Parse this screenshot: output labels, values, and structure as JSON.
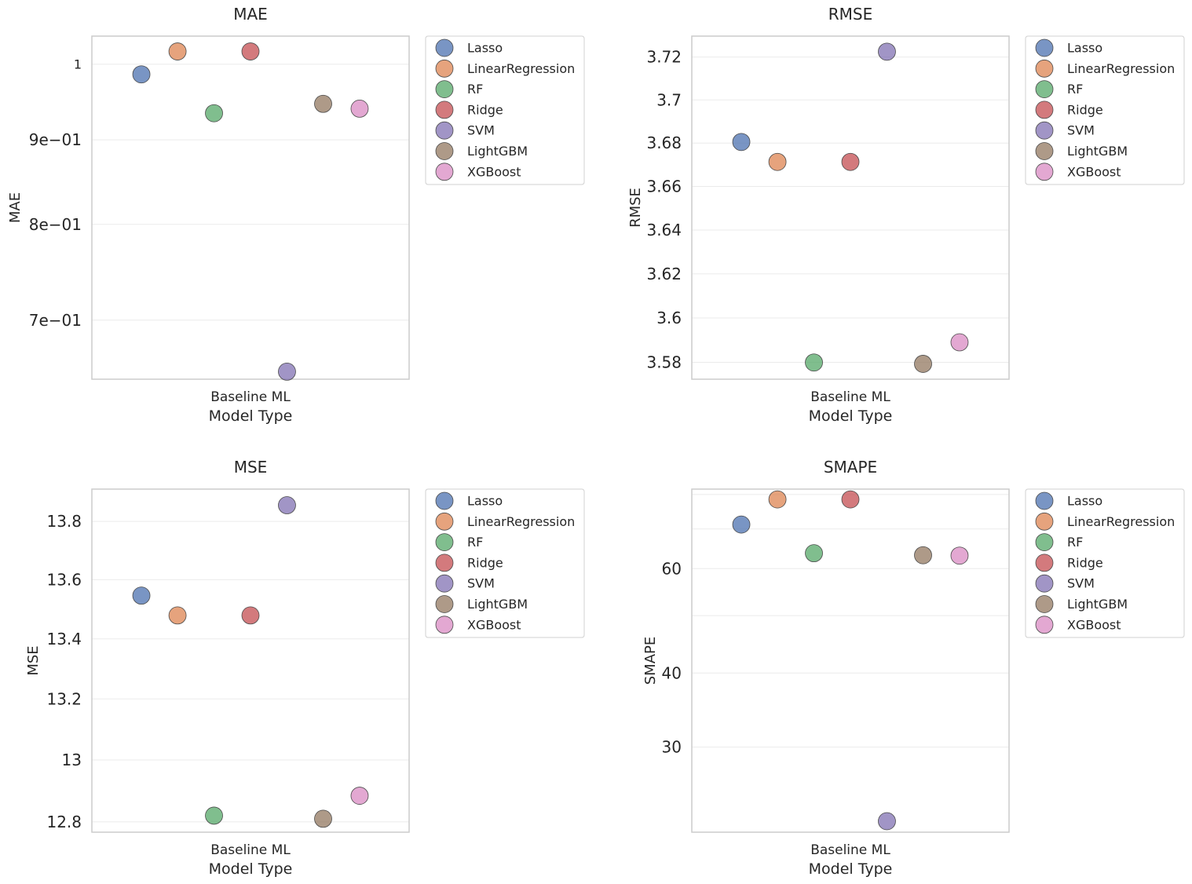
{
  "colors": {
    "Lasso": "#4c72b0",
    "LinearRegression": "#dd8452",
    "RF": "#55a868",
    "Ridge": "#c44e52",
    "SVM": "#8172b3",
    "LightGBM": "#937860",
    "XGBoost": "#da8bc3"
  },
  "chart_data": [
    {
      "type": "scatter",
      "title": "MAE",
      "xlabel": "Model Type",
      "ylabel": "MAE",
      "category": "Baseline ML",
      "yscale": "log",
      "ylim": [
        0.6447,
        1.04
      ],
      "ticks": [
        {
          "value": 1.0,
          "label": "1",
          "small": true
        },
        {
          "value": 0.9,
          "label": "9e−01"
        },
        {
          "value": 0.8,
          "label": "8e−01"
        },
        {
          "value": 0.7,
          "label": "7e−01"
        }
      ],
      "series": [
        {
          "name": "Lasso",
          "value": 0.986
        },
        {
          "name": "LinearRegression",
          "value": 1.018
        },
        {
          "name": "RF",
          "value": 0.934
        },
        {
          "name": "Ridge",
          "value": 1.018
        },
        {
          "name": "SVM",
          "value": 0.6515
        },
        {
          "name": "LightGBM",
          "value": 0.9463
        },
        {
          "name": "XGBoost",
          "value": 0.94
        }
      ],
      "legend_entries": [
        "Lasso",
        "LinearRegression",
        "RF",
        "Ridge",
        "SVM",
        "LightGBM",
        "XGBoost"
      ]
    },
    {
      "type": "scatter",
      "title": "RMSE",
      "xlabel": "Model Type",
      "ylabel": "RMSE",
      "category": "Baseline ML",
      "yscale": "log",
      "ylim": [
        3.5724,
        3.7298
      ],
      "ticks": [
        {
          "value": 3.72,
          "label": "3.72"
        },
        {
          "value": 3.7,
          "label": "3.7"
        },
        {
          "value": 3.68,
          "label": "3.68"
        },
        {
          "value": 3.66,
          "label": "3.66"
        },
        {
          "value": 3.64,
          "label": "3.64"
        },
        {
          "value": 3.62,
          "label": "3.62"
        },
        {
          "value": 3.6,
          "label": "3.6"
        },
        {
          "value": 3.58,
          "label": "3.58"
        }
      ],
      "series": [
        {
          "name": "Lasso",
          "value": 3.6805
        },
        {
          "name": "LinearRegression",
          "value": 3.6713
        },
        {
          "name": "RF",
          "value": 3.5799
        },
        {
          "name": "Ridge",
          "value": 3.6713
        },
        {
          "name": "SVM",
          "value": 3.7225
        },
        {
          "name": "LightGBM",
          "value": 3.5793
        },
        {
          "name": "XGBoost",
          "value": 3.589
        }
      ],
      "legend_entries": [
        "Lasso",
        "LinearRegression",
        "RF",
        "Ridge",
        "SVM",
        "LightGBM",
        "XGBoost"
      ]
    },
    {
      "type": "scatter",
      "title": "MSE",
      "xlabel": "Model Type",
      "ylabel": "MSE",
      "category": "Baseline ML",
      "yscale": "log",
      "ylim": [
        12.767,
        13.912
      ],
      "ticks": [
        {
          "value": 13.8,
          "label": "13.8"
        },
        {
          "value": 13.6,
          "label": "13.6"
        },
        {
          "value": 13.4,
          "label": "13.4"
        },
        {
          "value": 13.2,
          "label": "13.2"
        },
        {
          "value": 13.0,
          "label": "13"
        },
        {
          "value": 12.8,
          "label": "12.8"
        }
      ],
      "series": [
        {
          "name": "Lasso",
          "value": 13.546
        },
        {
          "name": "LinearRegression",
          "value": 13.479
        },
        {
          "name": "RF",
          "value": 12.82
        },
        {
          "name": "Ridge",
          "value": 13.479
        },
        {
          "name": "SVM",
          "value": 13.856
        },
        {
          "name": "LightGBM",
          "value": 12.81
        },
        {
          "name": "XGBoost",
          "value": 12.884
        }
      ],
      "legend_entries": [
        "Lasso",
        "LinearRegression",
        "RF",
        "Ridge",
        "SVM",
        "LightGBM",
        "XGBoost"
      ]
    },
    {
      "type": "scatter",
      "title": "SMAPE",
      "xlabel": "Model Type",
      "ylabel": "SMAPE",
      "category": "Baseline ML",
      "yscale": "log",
      "ylim": [
        21.56,
        81.7
      ],
      "ticks": [
        {
          "value": 60,
          "label": "60"
        },
        {
          "value": 40,
          "label": "40"
        },
        {
          "value": 30,
          "label": "30"
        }
      ],
      "minor_gridlines": [
        80,
        70,
        50
      ],
      "series": [
        {
          "name": "Lasso",
          "value": 71.2
        },
        {
          "name": "LinearRegression",
          "value": 78.5
        },
        {
          "name": "RF",
          "value": 63.7
        },
        {
          "name": "Ridge",
          "value": 78.5
        },
        {
          "name": "SVM",
          "value": 22.5
        },
        {
          "name": "LightGBM",
          "value": 63.2
        },
        {
          "name": "XGBoost",
          "value": 63.1
        }
      ],
      "legend_entries": [
        "Lasso",
        "LinearRegression",
        "RF",
        "Ridge",
        "SVM",
        "LightGBM",
        "XGBoost"
      ]
    }
  ]
}
